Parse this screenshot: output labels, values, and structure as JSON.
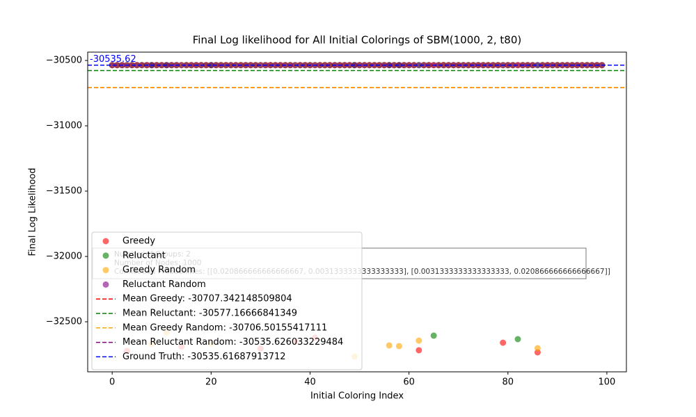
{
  "chart_data": {
    "type": "scatter",
    "title": "Final Log likelihood for All Initial Colorings of SBM(1000, 2, t80)",
    "xlabel": "Initial Coloring Index",
    "ylabel": "Final Log Likelihood",
    "xlim": [
      -4.95,
      103.95
    ],
    "ylim": [
      -32883,
      -30436
    ],
    "xticks": [
      0,
      20,
      40,
      60,
      80,
      100
    ],
    "yticks": [
      {
        "value": -30500,
        "label": "−30500"
      },
      {
        "value": -31000,
        "label": "−31000"
      },
      {
        "value": -31500,
        "label": "−31500"
      },
      {
        "value": -32000,
        "label": "−32000"
      },
      {
        "value": -32500,
        "label": "−32500"
      }
    ],
    "x": [
      0,
      1,
      2,
      3,
      4,
      5,
      6,
      7,
      8,
      9,
      10,
      11,
      12,
      13,
      14,
      15,
      16,
      17,
      18,
      19,
      20,
      21,
      22,
      23,
      24,
      25,
      26,
      27,
      28,
      29,
      30,
      31,
      32,
      33,
      34,
      35,
      36,
      37,
      38,
      39,
      40,
      41,
      42,
      43,
      44,
      45,
      46,
      47,
      48,
      49,
      50,
      51,
      52,
      53,
      54,
      55,
      56,
      57,
      58,
      59,
      60,
      61,
      62,
      63,
      64,
      65,
      66,
      67,
      68,
      69,
      70,
      71,
      72,
      73,
      74,
      75,
      76,
      77,
      78,
      79,
      80,
      81,
      82,
      83,
      84,
      85,
      86,
      87,
      88,
      89,
      90,
      91,
      92,
      93,
      94,
      95,
      96,
      97,
      98,
      99
    ],
    "series": [
      {
        "name": "Greedy",
        "color": "#ff0000",
        "values": [
          -30535.62,
          -30535.62,
          -30535.62,
          -32723,
          -30535.62,
          -30535.62,
          -30535.62,
          -30535.62,
          -30535.62,
          -30535.62,
          -30535.62,
          -30535.62,
          -30535.62,
          -30535.62,
          -32690,
          -30535.62,
          -30535.62,
          -30535.62,
          -30535.62,
          -30535.62,
          -30535.62,
          -30535.62,
          -30535.62,
          -30535.62,
          -30535.62,
          -30535.62,
          -30535.62,
          -30535.62,
          -30535.62,
          -30535.62,
          -32705,
          -30535.62,
          -30535.62,
          -30535.62,
          -30535.62,
          -30535.62,
          -30535.62,
          -32650,
          -30535.62,
          -30535.62,
          -30535.62,
          -32622,
          -30535.62,
          -30535.62,
          -30535.62,
          -30535.62,
          -30535.62,
          -30535.62,
          -30535.62,
          -30535.62,
          -30535.62,
          -30535.62,
          -30535.62,
          -30535.62,
          -30535.62,
          -30535.62,
          -30535.62,
          -30535.62,
          -30535.62,
          -30535.62,
          -30535.62,
          -30535.62,
          -32718,
          -30535.62,
          -30535.62,
          -30535.62,
          -30535.62,
          -30535.62,
          -30535.62,
          -30535.62,
          -30535.62,
          -30535.62,
          -30535.62,
          -30535.62,
          -30535.62,
          -30535.62,
          -30535.62,
          -30535.62,
          -30535.62,
          -32660,
          -30535.62,
          -30535.62,
          -30535.62,
          -30535.62,
          -30535.62,
          -30535.62,
          -32734,
          -30535.62,
          -30535.62,
          -30535.62,
          -30535.62,
          -30535.62,
          -30535.62,
          -30535.62,
          -30535.62,
          -30535.62,
          -30535.62,
          -30535.62,
          -30535.62,
          -30535.62
        ]
      },
      {
        "name": "Reluctant",
        "color": "#008000",
        "values": [
          -30535.62,
          -30535.62,
          -30535.62,
          -30535.62,
          -30535.62,
          -30535.62,
          -30535.62,
          -30535.62,
          -30535.62,
          -30535.62,
          -30535.62,
          -30535.62,
          -30535.62,
          -30535.62,
          -30535.62,
          -30535.62,
          -30535.62,
          -30535.62,
          -30535.62,
          -30535.62,
          -30535.62,
          -30535.62,
          -30535.62,
          -30535.62,
          -30535.62,
          -30535.62,
          -30535.62,
          -30535.62,
          -30535.62,
          -30535.62,
          -30535.62,
          -30535.62,
          -30535.62,
          -30535.62,
          -30535.62,
          -30535.62,
          -30535.62,
          -30535.62,
          -30535.62,
          -30535.62,
          -30535.62,
          -30535.62,
          -30535.62,
          -30535.62,
          -30535.62,
          -30535.62,
          -30535.62,
          -30535.62,
          -30535.62,
          -30535.62,
          -30535.62,
          -30535.62,
          -30535.62,
          -30535.62,
          -30535.62,
          -30535.62,
          -30535.62,
          -30535.62,
          -30535.62,
          -30535.62,
          -30535.62,
          -30535.62,
          -30535.62,
          -30535.62,
          -30535.62,
          -32606,
          -30535.62,
          -30535.62,
          -30535.62,
          -30535.62,
          -30535.62,
          -30535.62,
          -30535.62,
          -30535.62,
          -30535.62,
          -30535.62,
          -30535.62,
          -30535.62,
          -30535.62,
          -30535.62,
          -30535.62,
          -30535.62,
          -32633,
          -30535.62,
          -30535.62,
          -30535.62,
          -30535.62,
          -30535.62,
          -30535.62,
          -30535.62,
          -30535.62,
          -30535.62,
          -30535.62,
          -30535.62,
          -30535.62,
          -30535.62,
          -30535.62,
          -30535.62,
          -30535.62,
          -30535.62
        ]
      },
      {
        "name": "Greedy Random",
        "color": "#ffa500",
        "values": [
          -30535.62,
          -30535.62,
          -30535.62,
          -30535.62,
          -30535.62,
          -30535.62,
          -30535.62,
          -30535.62,
          -32670,
          -30535.62,
          -30535.62,
          -32580,
          -30535.62,
          -30535.62,
          -30535.62,
          -30535.62,
          -30535.62,
          -30535.62,
          -30535.62,
          -30535.62,
          -32665,
          -30535.62,
          -30535.62,
          -30535.62,
          -30535.62,
          -30535.62,
          -30535.62,
          -30535.62,
          -30535.62,
          -30535.62,
          -30535.62,
          -30535.62,
          -30535.62,
          -30535.62,
          -30535.62,
          -30535.62,
          -30535.62,
          -30535.62,
          -30535.62,
          -30535.62,
          -30535.62,
          -30535.62,
          -30535.62,
          -30535.62,
          -30535.62,
          -30535.62,
          -30535.62,
          -30535.62,
          -30535.62,
          -32766,
          -30535.62,
          -30535.62,
          -30535.62,
          -30535.62,
          -30535.62,
          -30535.62,
          -32681,
          -30535.62,
          -32686,
          -30535.62,
          -30535.62,
          -30535.62,
          -32644,
          -30535.62,
          -30535.62,
          -30535.62,
          -30535.62,
          -30535.62,
          -30535.62,
          -30535.62,
          -30535.62,
          -30535.62,
          -30535.62,
          -30535.62,
          -30535.62,
          -30535.62,
          -30535.62,
          -30535.62,
          -30535.62,
          -30535.62,
          -30535.62,
          -30535.62,
          -30535.62,
          -30535.62,
          -30535.62,
          -30535.62,
          -32702,
          -30535.62,
          -30535.62,
          -30535.62,
          -30535.62,
          -30535.62,
          -30535.62,
          -30535.62,
          -30535.62,
          -30535.62,
          -30535.62,
          -30535.62,
          -30535.62,
          -30535.62
        ]
      },
      {
        "name": "Reluctant Random",
        "color": "#800080",
        "values": [
          -30535.62,
          -30535.62,
          -30535.62,
          -30535.62,
          -30535.62,
          -30535.62,
          -30535.62,
          -30535.62,
          -30535.62,
          -30535.62,
          -30535.62,
          -30535.62,
          -30535.62,
          -30535.62,
          -30535.62,
          -30535.62,
          -30535.62,
          -30535.62,
          -30535.62,
          -30535.62,
          -30535.62,
          -30535.62,
          -30535.62,
          -30535.62,
          -30535.62,
          -30535.62,
          -30535.62,
          -30535.62,
          -30535.62,
          -30535.62,
          -30535.62,
          -30535.62,
          -30535.62,
          -30535.62,
          -30535.62,
          -30535.62,
          -30535.62,
          -30535.62,
          -30535.62,
          -30535.62,
          -30535.62,
          -30535.62,
          -30535.62,
          -30535.62,
          -30535.62,
          -30535.62,
          -30535.62,
          -30535.62,
          -30535.62,
          -30535.62,
          -30535.62,
          -30535.62,
          -30535.62,
          -30535.62,
          -30535.62,
          -30535.62,
          -30535.62,
          -30535.62,
          -30535.62,
          -30535.62,
          -30535.62,
          -30535.62,
          -30535.62,
          -30535.62,
          -30535.62,
          -30535.62,
          -30535.62,
          -30535.62,
          -30535.62,
          -30535.62,
          -30535.62,
          -30535.62,
          -30535.62,
          -30535.62,
          -30535.62,
          -30535.62,
          -30535.62,
          -30535.62,
          -30535.62,
          -30535.62,
          -30535.62,
          -30535.62,
          -30535.62,
          -30535.62,
          -30535.62,
          -30535.62,
          -30535.62,
          -30535.62,
          -30535.62,
          -30535.62,
          -30535.62,
          -30535.62,
          -30535.62,
          -30535.62,
          -30535.62,
          -30535.62,
          -30535.62,
          -30535.62,
          -30535.62,
          -30535.62
        ]
      }
    ],
    "hlines": [
      {
        "name": "Mean Greedy: -30707.342148509804",
        "value": -30707.342148509804,
        "color": "#ff0000"
      },
      {
        "name": "Mean Reluctant: -30577.16666841349",
        "value": -30577.16666841349,
        "color": "#008000"
      },
      {
        "name": "Mean Greedy Random: -30706.50155417111",
        "value": -30706.50155417111,
        "color": "#ffa500"
      },
      {
        "name": "Mean Reluctant Random: -30535.626033229484",
        "value": -30535.626033229484,
        "color": "#800080"
      },
      {
        "name": "Ground Truth: -30535.61687913712",
        "value": -30535.61687913712,
        "color": "#0000ff"
      }
    ],
    "annotation": "-30535.62",
    "info_box": [
      "Number of Groups: 2",
      "Number of Nodes: 1000",
      "Connection Probabilities: [[0.020866666666666667, 0.0031333333333333333], [0.0031333333333333333, 0.020866666666666667]]"
    ],
    "legend": "lower left"
  }
}
